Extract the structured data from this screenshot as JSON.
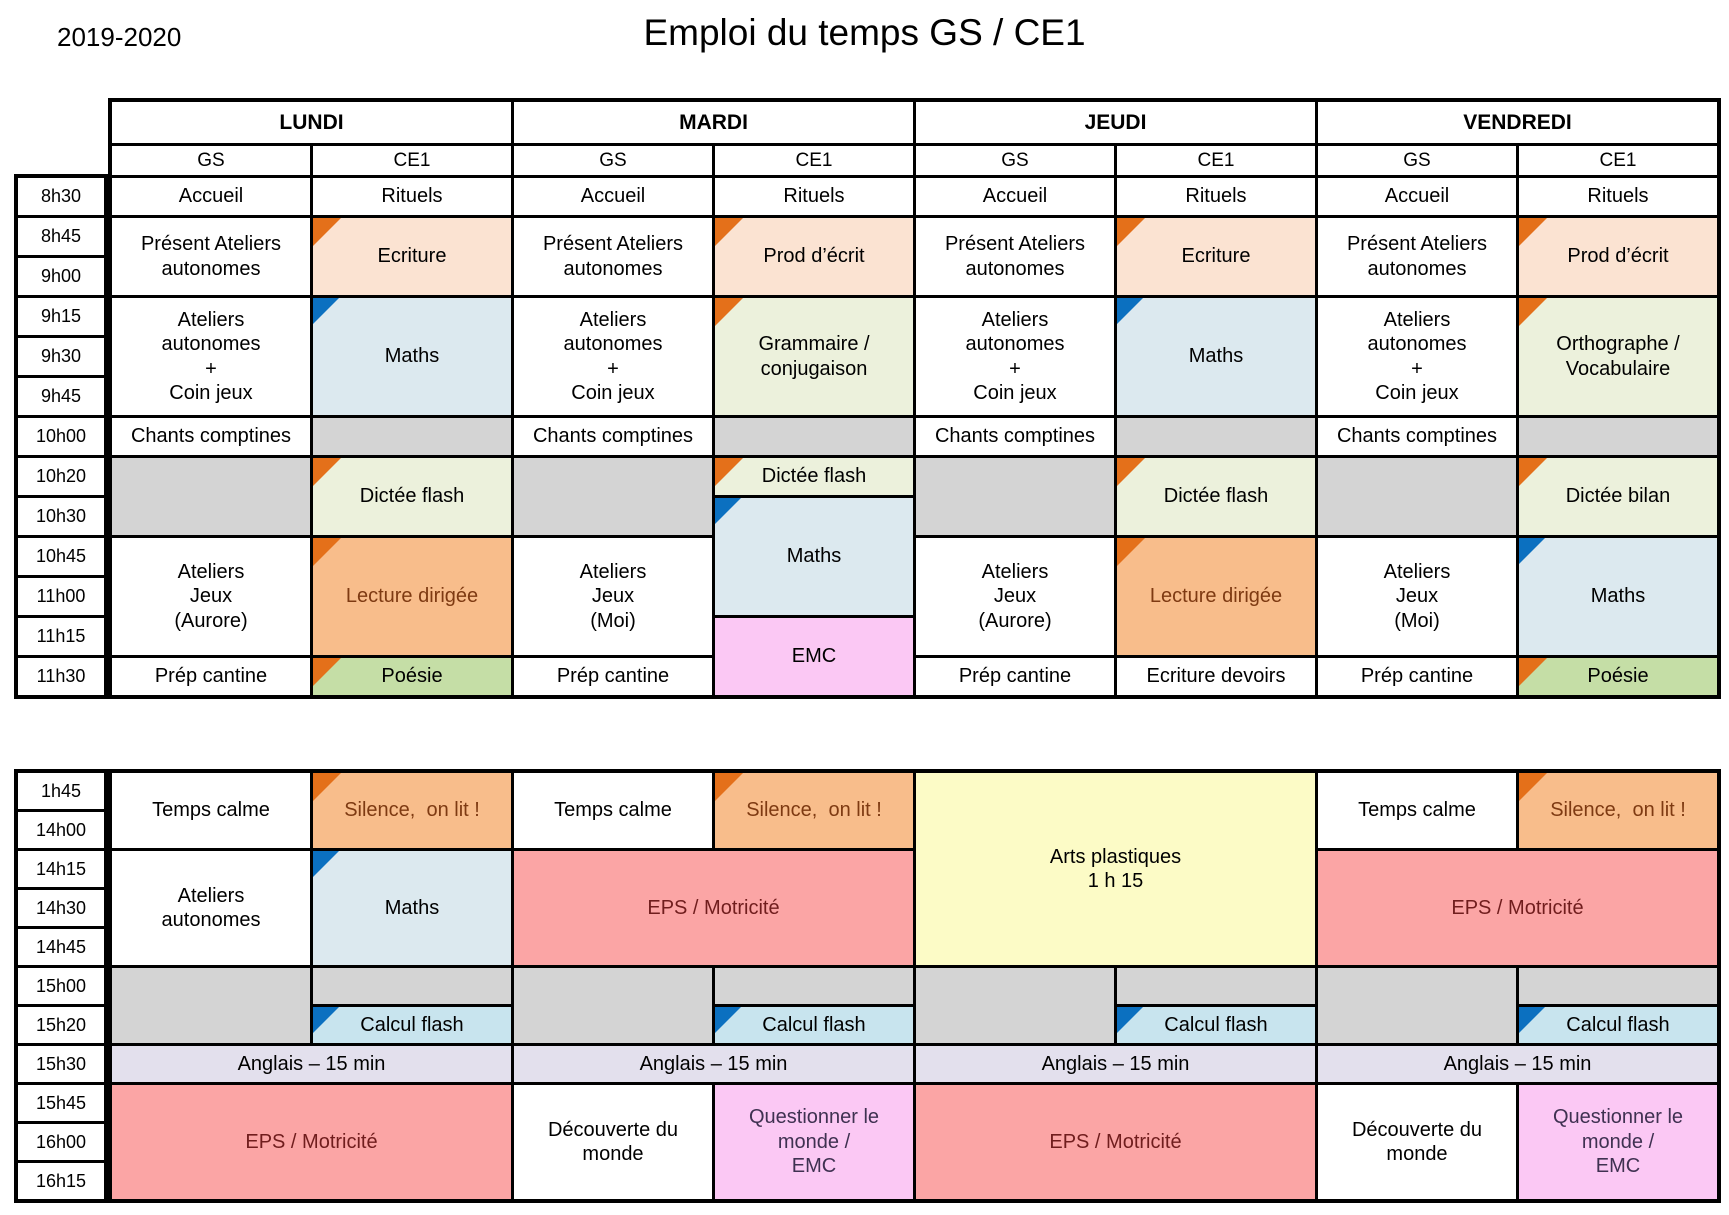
{
  "header": {
    "year": "2019-2020",
    "title": "Emploi du temps GS / CE1"
  },
  "days": [
    {
      "label": "LUNDI"
    },
    {
      "label": "MARDI"
    },
    {
      "label": "JEUDI"
    },
    {
      "label": "VENDREDI"
    }
  ],
  "group_cols": [
    "GS",
    "CE1"
  ],
  "colors": {
    "white": "#FFFFFF",
    "gray": "#D4D4D4",
    "peach": "#FBE3D2",
    "lightblue": "#DCE9EF",
    "olive": "#ECF1DC",
    "orange": "#F8BD8B",
    "green": "#C5DEA6",
    "pink": "#FBC8F4",
    "cyan": "#C8E4EE",
    "lavender": "#E3E0ED",
    "salmon": "#FBA5A5",
    "yellow": "#FCFBC6",
    "tri_orange": "#E4701A",
    "tri_blue": "#0B70C0",
    "text_maroon": "#7E3A12",
    "text_darkred": "#701D1D",
    "text_purple": "#3F3151"
  },
  "tables": [
    {
      "id": "morning",
      "has_header": true,
      "times": [
        "8h30",
        "8h45",
        "9h00",
        "9h15",
        "9h30",
        "9h45",
        "10h00",
        "10h20",
        "10h30",
        "10h45",
        "11h00",
        "11h15",
        "11h30"
      ],
      "cells": [
        {
          "d": 0,
          "c": 0,
          "r": 1,
          "s": 1,
          "t": "Accueil",
          "bg": "white"
        },
        {
          "d": 0,
          "c": 0,
          "r": 2,
          "s": 2,
          "t": "Présent Ateliers\nautonomes",
          "bg": "white"
        },
        {
          "d": 0,
          "c": 0,
          "r": 4,
          "s": 3,
          "t": "Ateliers\nautonomes\n+\nCoin jeux",
          "bg": "white"
        },
        {
          "d": 0,
          "c": 0,
          "r": 7,
          "s": 1,
          "t": "Chants comptines",
          "bg": "white"
        },
        {
          "d": 0,
          "c": 0,
          "r": 8,
          "s": 2,
          "t": "",
          "bg": "gray"
        },
        {
          "d": 0,
          "c": 0,
          "r": 10,
          "s": 3,
          "t": "Ateliers\nJeux\n(Aurore)",
          "bg": "white"
        },
        {
          "d": 0,
          "c": 0,
          "r": 13,
          "s": 1,
          "t": "Prép cantine",
          "bg": "white"
        },
        {
          "d": 0,
          "c": 1,
          "r": 1,
          "s": 1,
          "t": "Rituels",
          "bg": "white"
        },
        {
          "d": 0,
          "c": 1,
          "r": 2,
          "s": 2,
          "t": "Ecriture",
          "bg": "peach",
          "tri": "orange"
        },
        {
          "d": 0,
          "c": 1,
          "r": 4,
          "s": 3,
          "t": "Maths",
          "bg": "lightblue",
          "tri": "blue"
        },
        {
          "d": 0,
          "c": 1,
          "r": 7,
          "s": 1,
          "t": "",
          "bg": "gray"
        },
        {
          "d": 0,
          "c": 1,
          "r": 8,
          "s": 2,
          "t": "Dictée flash",
          "bg": "olive",
          "tri": "orange"
        },
        {
          "d": 0,
          "c": 1,
          "r": 10,
          "s": 3,
          "t": "Lecture dirigée",
          "bg": "orange",
          "tri": "orange",
          "fg": "text_maroon"
        },
        {
          "d": 0,
          "c": 1,
          "r": 13,
          "s": 1,
          "t": "Poésie",
          "bg": "green",
          "tri": "orange"
        },
        {
          "d": 1,
          "c": 0,
          "r": 1,
          "s": 1,
          "t": "Accueil",
          "bg": "white"
        },
        {
          "d": 1,
          "c": 0,
          "r": 2,
          "s": 2,
          "t": "Présent Ateliers\nautonomes",
          "bg": "white"
        },
        {
          "d": 1,
          "c": 0,
          "r": 4,
          "s": 3,
          "t": "Ateliers\nautonomes\n+\nCoin jeux",
          "bg": "white"
        },
        {
          "d": 1,
          "c": 0,
          "r": 7,
          "s": 1,
          "t": "Chants comptines",
          "bg": "white"
        },
        {
          "d": 1,
          "c": 0,
          "r": 8,
          "s": 2,
          "t": "",
          "bg": "gray"
        },
        {
          "d": 1,
          "c": 0,
          "r": 10,
          "s": 3,
          "t": "Ateliers\nJeux\n(Moi)",
          "bg": "white"
        },
        {
          "d": 1,
          "c": 0,
          "r": 13,
          "s": 1,
          "t": "Prép cantine",
          "bg": "white"
        },
        {
          "d": 1,
          "c": 1,
          "r": 1,
          "s": 1,
          "t": "Rituels",
          "bg": "white"
        },
        {
          "d": 1,
          "c": 1,
          "r": 2,
          "s": 2,
          "t": "Prod d’écrit",
          "bg": "peach",
          "tri": "orange"
        },
        {
          "d": 1,
          "c": 1,
          "r": 4,
          "s": 3,
          "t": "Grammaire /\nconjugaison",
          "bg": "olive",
          "tri": "orange"
        },
        {
          "d": 1,
          "c": 1,
          "r": 7,
          "s": 1,
          "t": "",
          "bg": "gray"
        },
        {
          "d": 1,
          "c": 1,
          "r": 8,
          "s": 1,
          "t": "Dictée flash",
          "bg": "olive",
          "tri": "orange"
        },
        {
          "d": 1,
          "c": 1,
          "r": 9,
          "s": 3,
          "t": "Maths",
          "bg": "lightblue",
          "tri": "blue"
        },
        {
          "d": 1,
          "c": 1,
          "r": 12,
          "s": 2,
          "t": "EMC",
          "bg": "pink"
        },
        {
          "d": 2,
          "c": 0,
          "r": 1,
          "s": 1,
          "t": "Accueil",
          "bg": "white"
        },
        {
          "d": 2,
          "c": 0,
          "r": 2,
          "s": 2,
          "t": "Présent Ateliers\nautonomes",
          "bg": "white"
        },
        {
          "d": 2,
          "c": 0,
          "r": 4,
          "s": 3,
          "t": "Ateliers\nautonomes\n+\nCoin jeux",
          "bg": "white"
        },
        {
          "d": 2,
          "c": 0,
          "r": 7,
          "s": 1,
          "t": "Chants comptines",
          "bg": "white"
        },
        {
          "d": 2,
          "c": 0,
          "r": 8,
          "s": 2,
          "t": "",
          "bg": "gray"
        },
        {
          "d": 2,
          "c": 0,
          "r": 10,
          "s": 3,
          "t": "Ateliers\nJeux\n(Aurore)",
          "bg": "white"
        },
        {
          "d": 2,
          "c": 0,
          "r": 13,
          "s": 1,
          "t": "Prép cantine",
          "bg": "white"
        },
        {
          "d": 2,
          "c": 1,
          "r": 1,
          "s": 1,
          "t": "Rituels",
          "bg": "white"
        },
        {
          "d": 2,
          "c": 1,
          "r": 2,
          "s": 2,
          "t": "Ecriture",
          "bg": "peach",
          "tri": "orange"
        },
        {
          "d": 2,
          "c": 1,
          "r": 4,
          "s": 3,
          "t": "Maths",
          "bg": "lightblue",
          "tri": "blue"
        },
        {
          "d": 2,
          "c": 1,
          "r": 7,
          "s": 1,
          "t": "",
          "bg": "gray"
        },
        {
          "d": 2,
          "c": 1,
          "r": 8,
          "s": 2,
          "t": "Dictée flash",
          "bg": "olive",
          "tri": "orange"
        },
        {
          "d": 2,
          "c": 1,
          "r": 10,
          "s": 3,
          "t": "Lecture dirigée",
          "bg": "orange",
          "tri": "orange",
          "fg": "text_maroon"
        },
        {
          "d": 2,
          "c": 1,
          "r": 13,
          "s": 1,
          "t": "Ecriture devoirs",
          "bg": "white"
        },
        {
          "d": 3,
          "c": 0,
          "r": 1,
          "s": 1,
          "t": "Accueil",
          "bg": "white"
        },
        {
          "d": 3,
          "c": 0,
          "r": 2,
          "s": 2,
          "t": "Présent Ateliers\nautonomes",
          "bg": "white"
        },
        {
          "d": 3,
          "c": 0,
          "r": 4,
          "s": 3,
          "t": "Ateliers\nautonomes\n+\nCoin jeux",
          "bg": "white"
        },
        {
          "d": 3,
          "c": 0,
          "r": 7,
          "s": 1,
          "t": "Chants comptines",
          "bg": "white"
        },
        {
          "d": 3,
          "c": 0,
          "r": 8,
          "s": 2,
          "t": "",
          "bg": "gray"
        },
        {
          "d": 3,
          "c": 0,
          "r": 10,
          "s": 3,
          "t": "Ateliers\nJeux\n(Moi)",
          "bg": "white"
        },
        {
          "d": 3,
          "c": 0,
          "r": 13,
          "s": 1,
          "t": "Prép cantine",
          "bg": "white"
        },
        {
          "d": 3,
          "c": 1,
          "r": 1,
          "s": 1,
          "t": "Rituels",
          "bg": "white"
        },
        {
          "d": 3,
          "c": 1,
          "r": 2,
          "s": 2,
          "t": "Prod d’écrit",
          "bg": "peach",
          "tri": "orange"
        },
        {
          "d": 3,
          "c": 1,
          "r": 4,
          "s": 3,
          "t": "Orthographe /\nVocabulaire",
          "bg": "olive",
          "tri": "orange"
        },
        {
          "d": 3,
          "c": 1,
          "r": 7,
          "s": 1,
          "t": "",
          "bg": "gray"
        },
        {
          "d": 3,
          "c": 1,
          "r": 8,
          "s": 2,
          "t": "Dictée bilan",
          "bg": "olive",
          "tri": "orange"
        },
        {
          "d": 3,
          "c": 1,
          "r": 10,
          "s": 3,
          "t": "Maths",
          "bg": "lightblue",
          "tri": "blue"
        },
        {
          "d": 3,
          "c": 1,
          "r": 13,
          "s": 1,
          "t": "Poésie",
          "bg": "green",
          "tri": "orange"
        }
      ]
    },
    {
      "id": "afternoon",
      "has_header": false,
      "times": [
        "1h45",
        "14h00",
        "14h15",
        "14h30",
        "14h45",
        "15h00",
        "15h20",
        "15h30",
        "15h45",
        "16h00",
        "16h15"
      ],
      "cells": [
        {
          "d": 0,
          "c": 0,
          "r": 1,
          "s": 2,
          "t": "Temps calme",
          "bg": "white"
        },
        {
          "d": 0,
          "c": 1,
          "r": 1,
          "s": 2,
          "t": "Silence,  on lit !",
          "bg": "orange",
          "tri": "orange",
          "fg": "text_maroon"
        },
        {
          "d": 0,
          "c": 0,
          "r": 3,
          "s": 3,
          "t": "Ateliers\nautonomes",
          "bg": "white"
        },
        {
          "d": 0,
          "c": 1,
          "r": 3,
          "s": 3,
          "t": "Maths",
          "bg": "lightblue",
          "tri": "blue"
        },
        {
          "d": 0,
          "c": 0,
          "r": 6,
          "s": 2,
          "t": "",
          "bg": "gray"
        },
        {
          "d": 0,
          "c": 1,
          "r": 6,
          "s": 1,
          "t": "",
          "bg": "gray"
        },
        {
          "d": 0,
          "c": 1,
          "r": 7,
          "s": 1,
          "t": "Calcul flash",
          "bg": "cyan",
          "tri": "blue"
        },
        {
          "d": 0,
          "c": 2,
          "r": 8,
          "s": 1,
          "t": "Anglais – 15 min",
          "bg": "lavender"
        },
        {
          "d": 0,
          "c": 2,
          "r": 9,
          "s": 3,
          "t": "EPS / Motricité",
          "bg": "salmon",
          "fg": "text_darkred"
        },
        {
          "d": 1,
          "c": 0,
          "r": 1,
          "s": 2,
          "t": "Temps calme",
          "bg": "white"
        },
        {
          "d": 1,
          "c": 1,
          "r": 1,
          "s": 2,
          "t": "Silence,  on lit !",
          "bg": "orange",
          "tri": "orange",
          "fg": "text_maroon"
        },
        {
          "d": 1,
          "c": 2,
          "r": 3,
          "s": 3,
          "t": "EPS / Motricité",
          "bg": "salmon",
          "fg": "text_darkred"
        },
        {
          "d": 1,
          "c": 0,
          "r": 6,
          "s": 2,
          "t": "",
          "bg": "gray"
        },
        {
          "d": 1,
          "c": 1,
          "r": 6,
          "s": 1,
          "t": "",
          "bg": "gray"
        },
        {
          "d": 1,
          "c": 1,
          "r": 7,
          "s": 1,
          "t": "Calcul flash",
          "bg": "cyan",
          "tri": "blue"
        },
        {
          "d": 1,
          "c": 2,
          "r": 8,
          "s": 1,
          "t": "Anglais – 15 min",
          "bg": "lavender"
        },
        {
          "d": 1,
          "c": 0,
          "r": 9,
          "s": 3,
          "t": "Découverte du\nmonde",
          "bg": "white"
        },
        {
          "d": 1,
          "c": 1,
          "r": 9,
          "s": 3,
          "t": "Questionner le\nmonde /\nEMC",
          "bg": "pink",
          "fg": "text_purple"
        },
        {
          "d": 2,
          "c": 2,
          "r": 1,
          "s": 5,
          "t": "Arts plastiques\n1 h 15",
          "bg": "yellow"
        },
        {
          "d": 2,
          "c": 0,
          "r": 6,
          "s": 2,
          "t": "",
          "bg": "gray"
        },
        {
          "d": 2,
          "c": 1,
          "r": 6,
          "s": 1,
          "t": "",
          "bg": "gray"
        },
        {
          "d": 2,
          "c": 1,
          "r": 7,
          "s": 1,
          "t": "Calcul flash",
          "bg": "cyan",
          "tri": "blue"
        },
        {
          "d": 2,
          "c": 2,
          "r": 8,
          "s": 1,
          "t": "Anglais – 15 min",
          "bg": "lavender"
        },
        {
          "d": 2,
          "c": 2,
          "r": 9,
          "s": 3,
          "t": "EPS / Motricité",
          "bg": "salmon",
          "fg": "text_darkred"
        },
        {
          "d": 3,
          "c": 0,
          "r": 1,
          "s": 2,
          "t": "Temps calme",
          "bg": "white"
        },
        {
          "d": 3,
          "c": 1,
          "r": 1,
          "s": 2,
          "t": "Silence,  on lit !",
          "bg": "orange",
          "tri": "orange",
          "fg": "text_maroon"
        },
        {
          "d": 3,
          "c": 2,
          "r": 3,
          "s": 3,
          "t": "EPS / Motricité",
          "bg": "salmon",
          "fg": "text_darkred"
        },
        {
          "d": 3,
          "c": 0,
          "r": 6,
          "s": 2,
          "t": "",
          "bg": "gray"
        },
        {
          "d": 3,
          "c": 1,
          "r": 6,
          "s": 1,
          "t": "",
          "bg": "gray"
        },
        {
          "d": 3,
          "c": 1,
          "r": 7,
          "s": 1,
          "t": "Calcul flash",
          "bg": "cyan",
          "tri": "blue"
        },
        {
          "d": 3,
          "c": 2,
          "r": 8,
          "s": 1,
          "t": "Anglais – 15 min",
          "bg": "lavender"
        },
        {
          "d": 3,
          "c": 0,
          "r": 9,
          "s": 3,
          "t": "Découverte du\nmonde",
          "bg": "white"
        },
        {
          "d": 3,
          "c": 1,
          "r": 9,
          "s": 3,
          "t": "Questionner le\nmonde /\nEMC",
          "bg": "pink",
          "fg": "text_purple"
        }
      ]
    }
  ]
}
